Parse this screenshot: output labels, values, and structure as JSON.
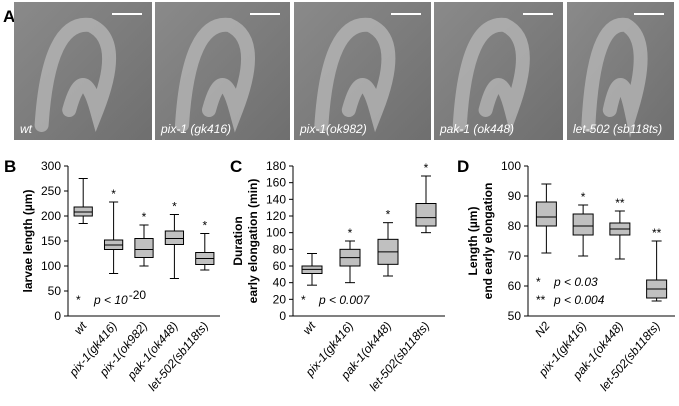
{
  "panel_a": {
    "label": "A",
    "images": [
      {
        "label": "wt"
      },
      {
        "label": "pix-1 (gk416)"
      },
      {
        "label": "pix-1(ok982)"
      },
      {
        "label": "pak-1 (ok448)"
      },
      {
        "label": "let-502 (sb118ts)"
      }
    ]
  },
  "chart_data": [
    {
      "type": "box",
      "panel": "B",
      "ylabel": [
        "larvae length (µm)"
      ],
      "categories": [
        "wt",
        "pix-1(gk416)",
        "pix-1(ok982)",
        "pak-1(ok448)",
        "let-502(sb118ts)"
      ],
      "min": [
        185,
        85,
        100,
        75,
        92
      ],
      "q1": [
        200,
        133,
        117,
        143,
        103
      ],
      "median": [
        208,
        142,
        133,
        155,
        115
      ],
      "q3": [
        218,
        152,
        155,
        170,
        127
      ],
      "max": [
        275,
        228,
        182,
        203,
        165
      ],
      "significance": [
        null,
        "*",
        "*",
        "*",
        "*"
      ],
      "color": "#c0c0c0",
      "ylim": [
        0,
        300
      ],
      "yticks": [
        0,
        50,
        100,
        150,
        200,
        250,
        300
      ],
      "notes": [
        {
          "marker": "*",
          "text": "p < 10",
          "exp": "-20"
        }
      ]
    },
    {
      "type": "box",
      "panel": "C",
      "ylabel": [
        "Duration",
        "early elongation (min)"
      ],
      "categories": [
        "wt",
        "pix-1(gk416)",
        "pak-1(ok448)",
        "let-502(sb118ts)"
      ],
      "min": [
        37,
        40,
        48,
        100
      ],
      "q1": [
        51,
        60,
        62,
        108
      ],
      "median": [
        56,
        70,
        77,
        118
      ],
      "q3": [
        60,
        80,
        92,
        135
      ],
      "max": [
        75,
        90,
        112,
        168
      ],
      "significance": [
        null,
        "*",
        "*",
        "*"
      ],
      "color": "#c0c0c0",
      "ylim": [
        0,
        180
      ],
      "yticks": [
        0,
        20,
        40,
        60,
        80,
        100,
        120,
        140,
        160,
        180
      ],
      "notes": [
        {
          "marker": "*",
          "text": "p < 0.007"
        }
      ]
    },
    {
      "type": "box",
      "panel": "D",
      "ylabel": [
        "Length (µm)",
        "end early elongation"
      ],
      "categories": [
        "N2",
        "pix-1(gk416)",
        "pak-1(ok448)",
        "let-502(sb118ts)"
      ],
      "min": [
        71,
        70,
        69,
        55
      ],
      "q1": [
        80,
        77,
        77,
        56
      ],
      "median": [
        83,
        80,
        79,
        59
      ],
      "q3": [
        88,
        84,
        81,
        62
      ],
      "max": [
        94,
        87,
        85,
        75
      ],
      "significance": [
        null,
        "*",
        "**",
        "**"
      ],
      "color": "#c0c0c0",
      "ylim": [
        50,
        100
      ],
      "yticks": [
        50,
        60,
        70,
        80,
        90,
        100
      ],
      "notes": [
        {
          "marker": "*",
          "text": "p < 0.03"
        },
        {
          "marker": "**",
          "text": "p < 0.004"
        }
      ]
    }
  ]
}
